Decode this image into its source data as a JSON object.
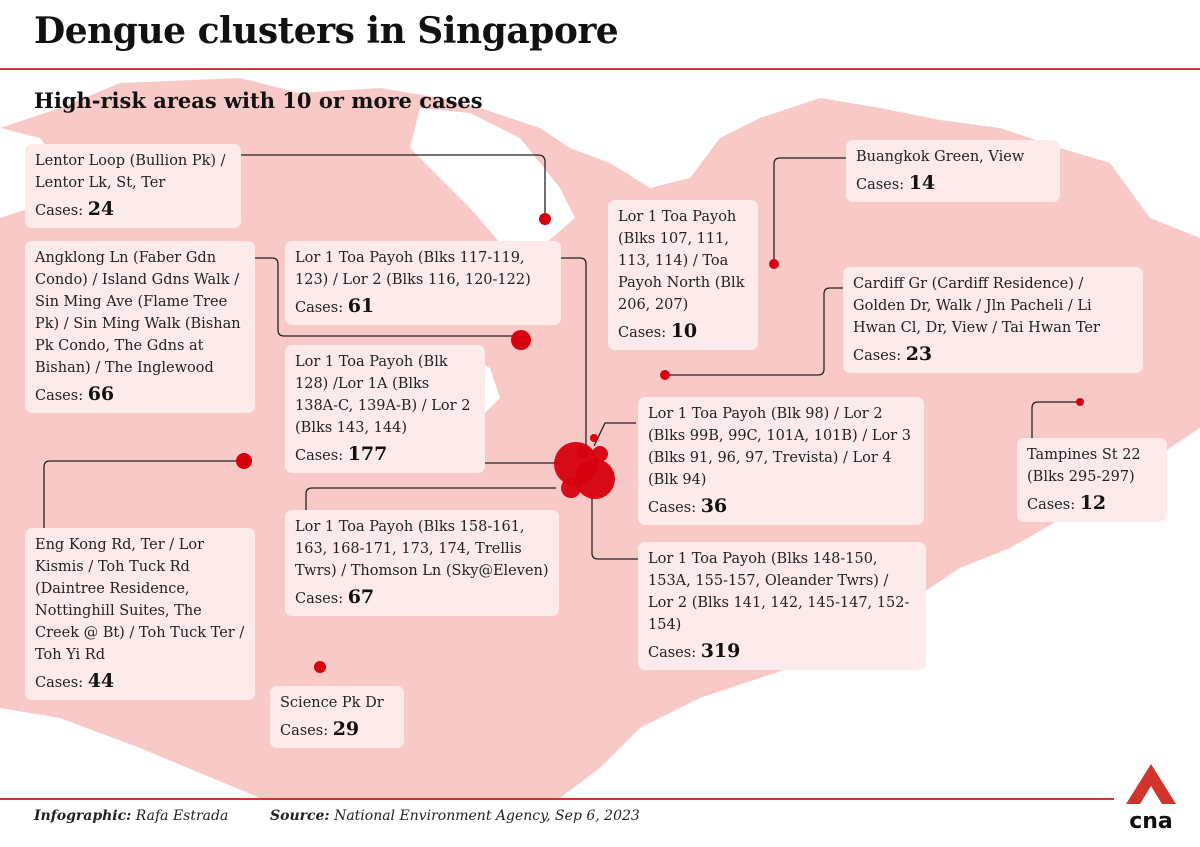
{
  "title": "Dengue clusters in Singapore",
  "subtitle": "High-risk areas with 10 or more cases",
  "cases_label": "Cases:",
  "colors": {
    "map_land": "#f8c9c6",
    "water": "#ffffff",
    "dot": "#d7000f",
    "accent": "#d0342c",
    "box": "#fcebea"
  },
  "clusters": [
    {
      "name": "Lentor Loop (Bullion Pk) / Lentor Lk, St, Ter",
      "cases": "24"
    },
    {
      "name": "Angklong Ln (Faber Gdn Condo) / Island Gdns Walk / Sin Ming Ave (Flame Tree Pk) / Sin Ming Walk (Bishan Pk Condo, The Gdns at Bishan) / The Inglewood",
      "cases": "66"
    },
    {
      "name": "Eng Kong Rd, Ter / Lor Kismis / Toh Tuck Rd (Daintree Residence, Nottinghill Suites, The Creek @ Bt) / Toh Tuck Ter / Toh Yi Rd",
      "cases": "44"
    },
    {
      "name": "Lor 1 Toa Payoh (Blks 117-119, 123) / Lor 2 (Blks 116, 120-122)",
      "cases": "61"
    },
    {
      "name": "Lor 1 Toa Payoh (Blk 128) /Lor 1A (Blks 138A-C, 139A-B) / Lor 2 (Blks 143, 144)",
      "cases": "177"
    },
    {
      "name": "Lor 1 Toa Payoh (Blks 158-161, 163, 168-171, 173, 174, Trellis Twrs) / Thomson Ln (Sky@Eleven)",
      "cases": "67"
    },
    {
      "name": "Science Pk Dr",
      "cases": "29"
    },
    {
      "name": "Lor 1 Toa Payoh (Blks 107, 111, 113, 114) / Toa Payoh North (Blk 206, 207)",
      "cases": "10"
    },
    {
      "name": "Lor 1 Toa Payoh (Blk 98) / Lor 2 (Blks 99B, 99C, 101A, 101B) / Lor 3 (Blks 91, 96, 97, Trevista) / Lor 4 (Blk 94)",
      "cases": "36"
    },
    {
      "name": "Lor 1 Toa Payoh (Blks 148-150, 153A, 155-157, Oleander Twrs) / Lor 2 (Blks 141, 142, 145-147, 152-154)",
      "cases": "319"
    },
    {
      "name": "Buangkok Green, View",
      "cases": "14"
    },
    {
      "name": "Cardiff Gr (Cardiff Residence) / Golden Dr, Walk / Jln Pacheli / Li Hwan Cl, Dr, View / Tai Hwan Ter",
      "cases": "23"
    },
    {
      "name": "Tampines St 22 (Blks 295-297)",
      "cases": "12"
    }
  ],
  "footer": {
    "infographic_label": "Infographic:",
    "infographic_value": "Rafa Estrada",
    "source_label": "Source:",
    "source_value": "National Environment Agency, Sep 6, 2023"
  },
  "logo_text": "cna"
}
